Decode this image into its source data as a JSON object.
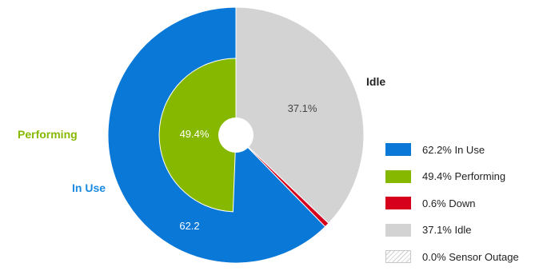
{
  "chart_data": {
    "type": "pie",
    "title": "",
    "outer_ring": {
      "slices": [
        {
          "label": "In Use",
          "value": 62.2,
          "display": "62.2%",
          "color": "#0a78d7"
        },
        {
          "label": "Idle",
          "value": 37.1,
          "display": "37.1%",
          "color": "#d3d3d3"
        },
        {
          "label": "Down",
          "value": 0.6,
          "display": "",
          "color": "#d6001c"
        },
        {
          "label": "Sensor Outage",
          "value": 0.0,
          "display": "",
          "color": "#ffffff"
        }
      ]
    },
    "inner_ring": {
      "slices": [
        {
          "label": "Performing",
          "value": 49.4,
          "display": "49.4%",
          "color": "#86b800"
        }
      ]
    },
    "slice_value_labels": {
      "in_use": "62.2",
      "performing": "49.4%",
      "idle": "37.1%"
    },
    "outside_labels": {
      "performing": "Performing",
      "in_use": "In Use",
      "idle": "Idle"
    },
    "legend": {
      "placement": "bottom-right",
      "items": [
        {
          "label": "62.2% In Use",
          "color": "#0a78d7",
          "pattern": "solid"
        },
        {
          "label": "49.4% Performing",
          "color": "#86b800",
          "pattern": "solid"
        },
        {
          "label": "0.6% Down",
          "color": "#d6001c",
          "pattern": "solid"
        },
        {
          "label": "37.1% Idle",
          "color": "#d3d3d3",
          "pattern": "solid"
        },
        {
          "label": "0.0% Sensor Outage",
          "color": "#cfcfcf",
          "pattern": "hatched"
        }
      ]
    }
  }
}
